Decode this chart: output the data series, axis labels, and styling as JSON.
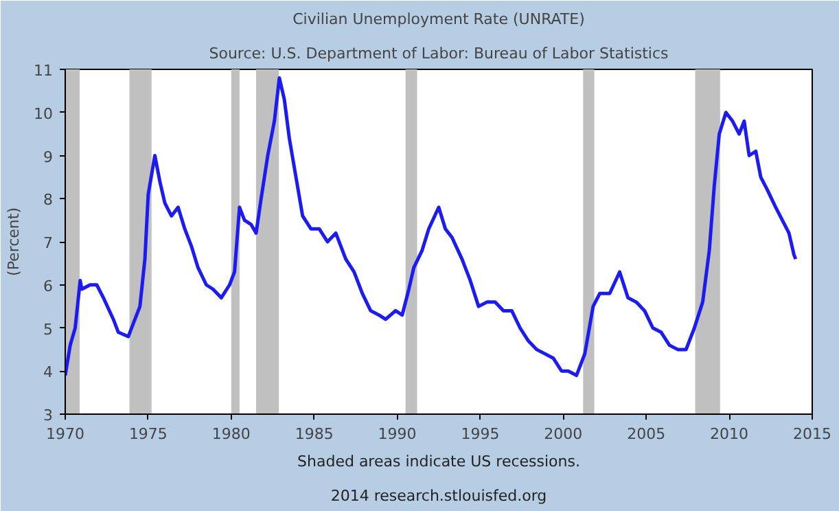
{
  "chart_data": {
    "type": "line",
    "title": "Civilian Unemployment Rate (UNRATE)",
    "subtitle": "Source: U.S. Department of Labor: Bureau of Labor Statistics",
    "ylabel": "(Percent)",
    "annotations": [
      "Shaded areas indicate US recessions.",
      "2014 research.stlouisfed.org"
    ],
    "x": [
      1970.0,
      1970.3,
      1970.6,
      1970.9,
      1971.0,
      1971.5,
      1971.9,
      1972.3,
      1972.9,
      1973.2,
      1973.8,
      1974.1,
      1974.5,
      1974.8,
      1975.0,
      1975.4,
      1975.7,
      1976.0,
      1976.4,
      1976.8,
      1977.2,
      1977.6,
      1978.0,
      1978.5,
      1978.9,
      1979.4,
      1979.9,
      1980.2,
      1980.5,
      1980.8,
      1981.2,
      1981.5,
      1981.8,
      1982.2,
      1982.6,
      1982.9,
      1983.2,
      1983.5,
      1983.9,
      1984.3,
      1984.8,
      1985.3,
      1985.8,
      1986.3,
      1986.9,
      1987.4,
      1987.9,
      1988.4,
      1988.9,
      1989.3,
      1989.9,
      1990.3,
      1990.7,
      1991.0,
      1991.5,
      1991.9,
      1992.5,
      1992.9,
      1993.3,
      1993.9,
      1994.4,
      1994.9,
      1995.4,
      1995.9,
      1996.4,
      1996.9,
      1997.4,
      1997.9,
      1998.4,
      1998.9,
      1999.4,
      1999.9,
      2000.3,
      2000.8,
      2001.3,
      2001.8,
      2002.2,
      2002.8,
      2003.4,
      2003.9,
      2004.4,
      2004.9,
      2005.4,
      2005.9,
      2006.4,
      2006.9,
      2007.4,
      2007.9,
      2008.4,
      2008.8,
      2009.1,
      2009.4,
      2009.8,
      2010.2,
      2010.6,
      2010.9,
      2011.2,
      2011.6,
      2011.9,
      2012.3,
      2012.8,
      2013.2,
      2013.6,
      2013.9,
      2014.0
    ],
    "series": [
      {
        "color": "#1c1cf0",
        "values": [
          3.9,
          4.6,
          5.0,
          6.1,
          5.9,
          6.0,
          6.0,
          5.7,
          5.2,
          4.9,
          4.8,
          5.1,
          5.5,
          6.6,
          8.1,
          9.0,
          8.4,
          7.9,
          7.6,
          7.8,
          7.3,
          6.9,
          6.4,
          6.0,
          5.9,
          5.7,
          6.0,
          6.3,
          7.8,
          7.5,
          7.4,
          7.2,
          8.0,
          9.0,
          9.8,
          10.8,
          10.3,
          9.4,
          8.5,
          7.6,
          7.3,
          7.3,
          7.0,
          7.2,
          6.6,
          6.3,
          5.8,
          5.4,
          5.3,
          5.2,
          5.4,
          5.3,
          5.9,
          6.4,
          6.8,
          7.3,
          7.8,
          7.3,
          7.1,
          6.6,
          6.1,
          5.5,
          5.6,
          5.6,
          5.4,
          5.4,
          5.0,
          4.7,
          4.5,
          4.4,
          4.3,
          4.0,
          4.0,
          3.9,
          4.4,
          5.5,
          5.8,
          5.8,
          6.3,
          5.7,
          5.6,
          5.4,
          5.0,
          4.9,
          4.6,
          4.5,
          4.5,
          5.0,
          5.6,
          6.8,
          8.3,
          9.5,
          10.0,
          9.8,
          9.5,
          9.8,
          9.0,
          9.1,
          8.5,
          8.2,
          7.8,
          7.5,
          7.2,
          6.7,
          6.6
        ]
      }
    ],
    "xlim": [
      1970,
      2015
    ],
    "xticks": [
      1970,
      1975,
      1980,
      1985,
      1990,
      1995,
      2000,
      2005,
      2010,
      2015
    ],
    "ylim": [
      3,
      11
    ],
    "yticks": [
      3,
      4,
      5,
      6,
      7,
      8,
      9,
      10,
      11
    ],
    "grid": false,
    "bands": [
      {
        "axis": "x",
        "from": 1970.0,
        "to": 1970.87,
        "color": "#c0c0c0"
      },
      {
        "axis": "x",
        "from": 1973.87,
        "to": 1975.2,
        "color": "#c0c0c0"
      },
      {
        "axis": "x",
        "from": 1980.0,
        "to": 1980.5,
        "color": "#c0c0c0"
      },
      {
        "axis": "x",
        "from": 1981.5,
        "to": 1982.87,
        "color": "#c0c0c0"
      },
      {
        "axis": "x",
        "from": 1990.5,
        "to": 1991.2,
        "color": "#c0c0c0"
      },
      {
        "axis": "x",
        "from": 2001.2,
        "to": 2001.87,
        "color": "#c0c0c0"
      },
      {
        "axis": "x",
        "from": 2007.95,
        "to": 2009.45,
        "color": "#c0c0c0"
      }
    ]
  }
}
